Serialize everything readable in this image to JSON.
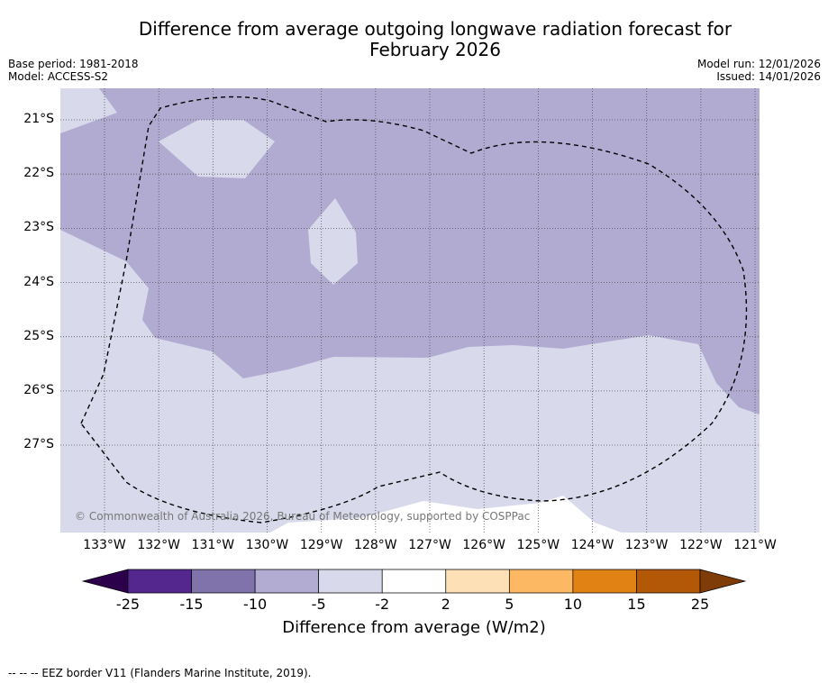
{
  "title_line1": "Difference from average outgoing longwave radiation forecast for",
  "title_line2": "February 2026",
  "base_period": "Base period: 1981-2018",
  "model": "Model: ACCESS-S2",
  "model_run": "Model run: 12/01/2026",
  "issued": "Issued: 14/01/2026",
  "copyright": "© Commonwealth of Australia 2026, Bureau of Meteorology, supported by COSPPac",
  "lon_ticks": [
    {
      "v": 133,
      "label": "133°W"
    },
    {
      "v": 132,
      "label": "132°W"
    },
    {
      "v": 131,
      "label": "131°W"
    },
    {
      "v": 130,
      "label": "130°W"
    },
    {
      "v": 129,
      "label": "129°W"
    },
    {
      "v": 128,
      "label": "128°W"
    },
    {
      "v": 127,
      "label": "127°W"
    },
    {
      "v": 126,
      "label": "126°W"
    },
    {
      "v": 125,
      "label": "125°W"
    },
    {
      "v": 124,
      "label": "124°W"
    },
    {
      "v": 123,
      "label": "123°W"
    },
    {
      "v": 122,
      "label": "122°W"
    },
    {
      "v": 121,
      "label": "121°W"
    }
  ],
  "lat_ticks": [
    {
      "v": 21,
      "label": "21°S"
    },
    {
      "v": 22,
      "label": "22°S"
    },
    {
      "v": 23,
      "label": "23°S"
    },
    {
      "v": 24,
      "label": "24°S"
    },
    {
      "v": 25,
      "label": "25°S"
    },
    {
      "v": 26,
      "label": "26°S"
    },
    {
      "v": 27,
      "label": "27°S"
    }
  ],
  "colorbar": {
    "title": "Difference from average (W/m2)",
    "bounds": [
      "-25",
      "-15",
      "-10",
      "-5",
      "-2",
      "2",
      "5",
      "10",
      "15",
      "25"
    ],
    "colors": [
      "#54278f",
      "#8073ac",
      "#b2abd2",
      "#d8daeb",
      "#ffffff",
      "#fee0b6",
      "#fdb863",
      "#e08214",
      "#b35806"
    ],
    "under_color": "#2d004b",
    "over_color": "#7f3b08"
  },
  "footnote": "--  --  -- EEZ border V11 (Flanders Marine Institute, 2019)."
}
